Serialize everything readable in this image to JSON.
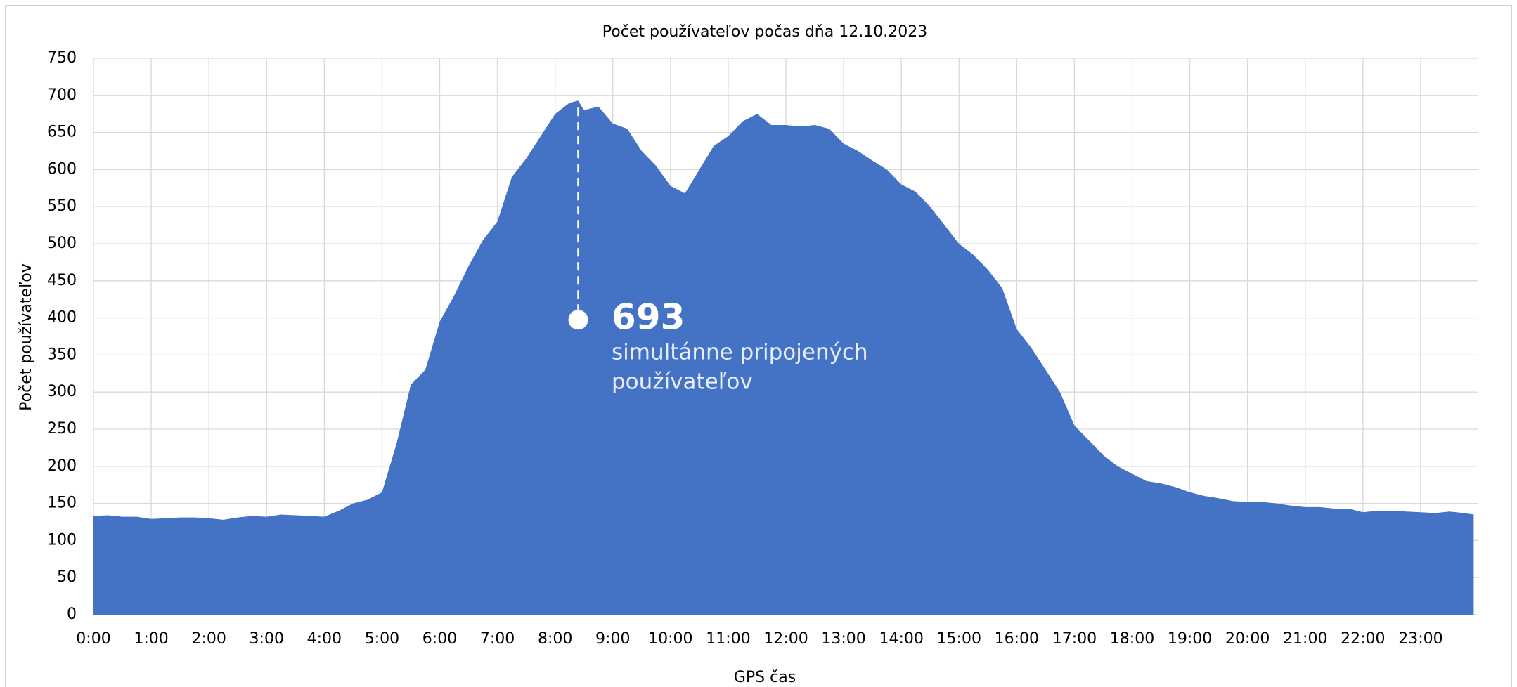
{
  "chart_data": {
    "type": "area",
    "title": "Počet používateľov počas dňa 12.10.2023",
    "xlabel": "GPS čas",
    "ylabel": "Počet používateľov",
    "color": "#4472c4",
    "grid": true,
    "x": [
      0,
      0.25,
      0.5,
      0.75,
      1,
      1.25,
      1.5,
      1.75,
      2,
      2.25,
      2.5,
      2.75,
      3,
      3.25,
      3.5,
      3.75,
      4,
      4.25,
      4.5,
      4.75,
      5,
      5.25,
      5.5,
      5.75,
      6,
      6.25,
      6.5,
      6.75,
      7,
      7.25,
      7.5,
      7.75,
      8,
      8.25,
      8.4,
      8.5,
      8.75,
      9,
      9.25,
      9.5,
      9.75,
      10,
      10.25,
      10.5,
      10.75,
      11,
      11.25,
      11.5,
      11.75,
      12,
      12.25,
      12.5,
      12.75,
      13,
      13.25,
      13.5,
      13.75,
      14,
      14.25,
      14.5,
      14.75,
      15,
      15.25,
      15.5,
      15.75,
      16,
      16.25,
      16.5,
      16.75,
      17,
      17.25,
      17.5,
      17.75,
      18,
      18.25,
      18.5,
      18.75,
      19,
      19.25,
      19.5,
      19.75,
      20,
      20.25,
      20.5,
      20.75,
      21,
      21.25,
      21.5,
      21.75,
      22,
      22.25,
      22.5,
      22.75,
      23,
      23.25,
      23.5,
      23.75,
      23.92
    ],
    "values": [
      133,
      134,
      132,
      132,
      129,
      130,
      131,
      131,
      130,
      128,
      131,
      133,
      132,
      135,
      134,
      133,
      132,
      140,
      150,
      155,
      165,
      230,
      310,
      330,
      395,
      430,
      470,
      505,
      530,
      590,
      615,
      645,
      675,
      690,
      693,
      680,
      685,
      662,
      655,
      625,
      605,
      578,
      568,
      600,
      632,
      645,
      665,
      675,
      660,
      660,
      658,
      660,
      655,
      635,
      625,
      612,
      600,
      580,
      570,
      550,
      525,
      500,
      485,
      465,
      440,
      385,
      360,
      330,
      300,
      255,
      235,
      215,
      200,
      190,
      180,
      177,
      172,
      165,
      160,
      157,
      153,
      152,
      152,
      150,
      147,
      145,
      145,
      143,
      143,
      138,
      140,
      140,
      139,
      138,
      137,
      139,
      137,
      135
    ],
    "xlim": [
      0,
      24
    ],
    "xticks": [
      {
        "value": 0,
        "label": "0:00"
      },
      {
        "value": 1,
        "label": "1:00"
      },
      {
        "value": 2,
        "label": "2:00"
      },
      {
        "value": 3,
        "label": "3:00"
      },
      {
        "value": 4,
        "label": "4:00"
      },
      {
        "value": 5,
        "label": "5:00"
      },
      {
        "value": 6,
        "label": "6:00"
      },
      {
        "value": 7,
        "label": "7:00"
      },
      {
        "value": 8,
        "label": "8:00"
      },
      {
        "value": 9,
        "label": "9:00"
      },
      {
        "value": 10,
        "label": "10:00"
      },
      {
        "value": 11,
        "label": "11:00"
      },
      {
        "value": 12,
        "label": "12:00"
      },
      {
        "value": 13,
        "label": "13:00"
      },
      {
        "value": 14,
        "label": "14:00"
      },
      {
        "value": 15,
        "label": "15:00"
      },
      {
        "value": 16,
        "label": "16:00"
      },
      {
        "value": 17,
        "label": "17:00"
      },
      {
        "value": 18,
        "label": "18:00"
      },
      {
        "value": 19,
        "label": "19:00"
      },
      {
        "value": 20,
        "label": "20:00"
      },
      {
        "value": 21,
        "label": "21:00"
      },
      {
        "value": 22,
        "label": "22:00"
      },
      {
        "value": 23,
        "label": "23:00"
      }
    ],
    "ylim": [
      0,
      750
    ],
    "yticks": [
      0,
      50,
      100,
      150,
      200,
      250,
      300,
      350,
      400,
      450,
      500,
      550,
      600,
      650,
      700,
      750
    ],
    "annotation": {
      "x": 8.4,
      "value": 693,
      "text": [
        "simultánne pripojených",
        "používateľov"
      ]
    }
  }
}
